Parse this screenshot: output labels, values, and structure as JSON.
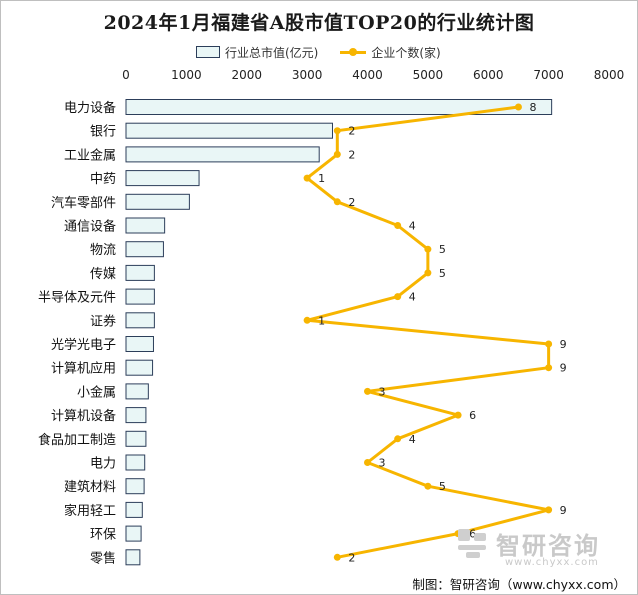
{
  "chart_data": {
    "type": "bar",
    "title": "2024年1月福建省A股市值TOP20的行业统计图",
    "orientation": "horizontal",
    "categories": [
      "电力设备",
      "银行",
      "工业金属",
      "中药",
      "汽车零部件",
      "通信设备",
      "物流",
      "传媒",
      "半导体及元件",
      "证券",
      "光学光电子",
      "计算机应用",
      "小金属",
      "计算机设备",
      "食品加工制造",
      "电力",
      "建筑材料",
      "家用轻工",
      "环保",
      "零售"
    ],
    "series": [
      {
        "name": "行业总市值(亿元)",
        "type": "bar",
        "values": [
          7050,
          3420,
          3200,
          1210,
          1050,
          640,
          620,
          470,
          470,
          470,
          455,
          440,
          370,
          330,
          330,
          310,
          300,
          270,
          250,
          230
        ]
      },
      {
        "name": "企业个数(家)",
        "type": "line",
        "values": [
          8,
          2,
          2,
          1,
          2,
          4,
          5,
          5,
          4,
          1,
          9,
          9,
          3,
          6,
          4,
          3,
          5,
          9,
          6,
          2
        ]
      }
    ],
    "xlim": [
      0,
      8000
    ],
    "xticks": [
      0,
      1000,
      2000,
      3000,
      4000,
      5000,
      6000,
      7000,
      8000
    ],
    "line_scale": [
      -5,
      11
    ],
    "legend_position": "top",
    "grid": false,
    "colors": {
      "bar_fill": "#e9f6f6",
      "bar_stroke": "#2c3e5a",
      "line": "#f7b500"
    }
  },
  "legend": {
    "bar_label": "行业总市值(亿元)",
    "line_label": "企业个数(家)"
  },
  "watermark": {
    "brand": "智研咨询",
    "url": "www.chyxx.com"
  },
  "source": "制图：智研咨询（www.chyxx.com）"
}
